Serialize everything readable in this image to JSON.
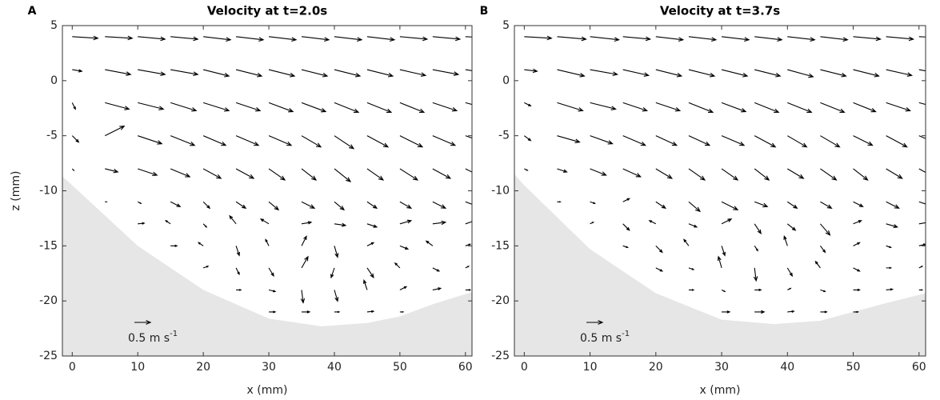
{
  "chart_data": [
    {
      "type": "quiver",
      "panel": "A",
      "title": "Velocity at t=2.0s",
      "xlabel": "x (mm)",
      "ylabel": "z (mm)",
      "xlim": [
        -1.5,
        61
      ],
      "ylim": [
        -25,
        5
      ],
      "xticks": [
        0,
        10,
        20,
        30,
        40,
        50,
        60
      ],
      "yticks": [
        -25,
        -20,
        -15,
        -10,
        -5,
        0,
        5
      ],
      "color": "#000000",
      "bed_color": "#e6e6e6",
      "bed_x": [
        -1.5,
        0,
        10,
        20,
        30,
        38,
        45,
        50,
        55,
        61
      ],
      "bed_z": [
        -8.7,
        -9.5,
        -15,
        -19,
        -21.6,
        -22.3,
        -22,
        -21.4,
        -20.3,
        -19.2
      ],
      "scale_value": 0.5,
      "scale_label": "0.5 m s",
      "scale_exponent": "-1",
      "x": [
        0,
        5,
        10,
        15,
        20,
        25,
        30,
        35,
        40,
        45,
        50,
        55,
        60
      ],
      "z": [
        4,
        1,
        -2,
        -5,
        -8,
        -11,
        -13,
        -15,
        -17,
        -19,
        -21
      ],
      "u": [
        [
          0.8,
          0.85,
          0.85,
          0.85,
          0.85,
          0.85,
          0.85,
          0.85,
          0.85,
          0.85,
          0.85,
          0.85,
          0.85
        ],
        [
          0.3,
          0.8,
          0.85,
          0.85,
          0.8,
          0.8,
          0.8,
          0.8,
          0.8,
          0.8,
          0.8,
          0.8,
          0.8
        ],
        [
          0.1,
          0.75,
          0.8,
          0.8,
          0.8,
          0.75,
          0.75,
          0.75,
          0.75,
          0.75,
          0.75,
          0.75,
          0.75
        ],
        [
          0.2,
          0.6,
          0.75,
          0.75,
          0.7,
          0.7,
          0.7,
          0.6,
          0.6,
          0.65,
          0.7,
          0.7,
          0.7
        ],
        [
          0.05,
          0.4,
          0.6,
          0.6,
          0.55,
          0.55,
          0.5,
          0.45,
          0.5,
          0.5,
          0.55,
          0.55,
          0.6
        ],
        [
          null,
          0.05,
          0.1,
          0.3,
          0.2,
          0.3,
          0.3,
          0.4,
          0.3,
          0.3,
          0.35,
          0.4,
          0.4
        ],
        [
          null,
          null,
          0.2,
          -0.15,
          0.1,
          -0.2,
          -0.25,
          0.3,
          0.35,
          0.3,
          0.35,
          0.4,
          0.3
        ],
        [
          null,
          null,
          null,
          0.2,
          -0.15,
          0.1,
          -0.1,
          0.15,
          0.1,
          0.2,
          0.25,
          -0.2,
          0.15
        ],
        [
          null,
          null,
          null,
          null,
          0.15,
          0.1,
          0.15,
          0.2,
          -0.1,
          0.2,
          -0.15,
          0.2,
          0.1
        ],
        [
          null,
          null,
          null,
          null,
          null,
          0.15,
          0.2,
          0.05,
          0.1,
          -0.1,
          0.2,
          0.25,
          0.15
        ],
        [
          null,
          null,
          null,
          null,
          null,
          null,
          0.2,
          0.25,
          0.15,
          0.2,
          0.1,
          null,
          null
        ]
      ],
      "w": [
        [
          -0.05,
          -0.05,
          -0.08,
          -0.08,
          -0.1,
          -0.1,
          -0.1,
          -0.1,
          -0.1,
          -0.1,
          -0.08,
          -0.08,
          -0.05
        ],
        [
          -0.05,
          -0.15,
          -0.15,
          -0.15,
          -0.2,
          -0.2,
          -0.2,
          -0.2,
          -0.2,
          -0.2,
          -0.18,
          -0.15,
          -0.12
        ],
        [
          -0.2,
          -0.2,
          -0.2,
          -0.25,
          -0.25,
          -0.25,
          -0.28,
          -0.28,
          -0.3,
          -0.3,
          -0.3,
          -0.25,
          -0.2
        ],
        [
          -0.2,
          0.3,
          -0.25,
          -0.3,
          -0.3,
          -0.3,
          -0.3,
          -0.35,
          -0.4,
          -0.35,
          -0.35,
          -0.3,
          -0.25
        ],
        [
          -0.05,
          -0.1,
          -0.2,
          -0.25,
          -0.3,
          -0.3,
          -0.35,
          -0.35,
          -0.4,
          -0.35,
          -0.35,
          -0.3,
          -0.3
        ],
        [
          null,
          0,
          -0.05,
          -0.15,
          -0.2,
          -0.2,
          -0.25,
          -0.2,
          -0.25,
          -0.2,
          -0.2,
          -0.2,
          -0.15
        ],
        [
          null,
          null,
          0.02,
          0.1,
          -0.1,
          0.25,
          0.15,
          0.05,
          -0.05,
          -0.1,
          0.1,
          0.05,
          0.1
        ],
        [
          null,
          null,
          null,
          0,
          0.1,
          -0.3,
          0.2,
          0.3,
          -0.35,
          0.1,
          -0.1,
          0.15,
          0.05
        ],
        [
          null,
          null,
          null,
          null,
          0.05,
          -0.2,
          -0.25,
          0.35,
          -0.3,
          -0.3,
          0.15,
          -0.1,
          0.05
        ],
        [
          null,
          null,
          null,
          null,
          null,
          0,
          -0.05,
          -0.4,
          -0.35,
          0.3,
          0.1,
          0.05,
          0
        ],
        [
          null,
          null,
          null,
          null,
          null,
          null,
          0,
          0,
          0,
          0.02,
          0,
          null,
          null
        ]
      ]
    },
    {
      "type": "quiver",
      "panel": "B",
      "title": "Velocity at t=3.7s",
      "xlabel": "x (mm)",
      "xlim": [
        -1.5,
        61
      ],
      "ylim": [
        -25,
        5
      ],
      "xticks": [
        0,
        10,
        20,
        30,
        40,
        50,
        60
      ],
      "yticks": [
        -25,
        -20,
        -15,
        -10,
        -5,
        0,
        5
      ],
      "color": "#000000",
      "bed_color": "#e6e6e6",
      "bed_x": [
        -1.5,
        0,
        10,
        20,
        30,
        38,
        45,
        50,
        55,
        61
      ],
      "bed_z": [
        -8.5,
        -9.5,
        -15.3,
        -19.3,
        -21.7,
        -22.1,
        -21.8,
        -21,
        -20.2,
        -19.3
      ],
      "scale_value": 0.5,
      "scale_label": "0.5 m s",
      "scale_exponent": "-1",
      "x": [
        0,
        5,
        10,
        15,
        20,
        25,
        30,
        35,
        40,
        45,
        50,
        55,
        60
      ],
      "z": [
        4,
        1,
        -2,
        -5,
        -8,
        -11,
        -13,
        -15,
        -17,
        -19,
        -21
      ],
      "u": [
        [
          0.85,
          0.9,
          0.9,
          0.85,
          0.85,
          0.85,
          0.85,
          0.85,
          0.85,
          0.85,
          0.85,
          0.85,
          0.85
        ],
        [
          0.4,
          0.85,
          0.85,
          0.8,
          0.8,
          0.8,
          0.8,
          0.8,
          0.8,
          0.8,
          0.8,
          0.8,
          0.8
        ],
        [
          0.2,
          0.8,
          0.8,
          0.75,
          0.75,
          0.75,
          0.75,
          0.75,
          0.75,
          0.75,
          0.7,
          0.75,
          0.75
        ],
        [
          0.2,
          0.7,
          0.7,
          0.7,
          0.65,
          0.65,
          0.7,
          0.65,
          0.6,
          0.6,
          0.6,
          0.65,
          0.7
        ],
        [
          0.1,
          0.3,
          0.5,
          0.55,
          0.5,
          0.5,
          0.5,
          0.45,
          0.5,
          0.5,
          0.45,
          0.5,
          0.55
        ],
        [
          null,
          0.1,
          0.15,
          0.2,
          0.3,
          0.35,
          0.5,
          0.4,
          0.3,
          0.35,
          0.3,
          0.4,
          0.45
        ],
        [
          null,
          null,
          0.1,
          0.2,
          -0.2,
          0.25,
          0.3,
          0.2,
          0.25,
          0.3,
          0.25,
          0.35,
          0.3
        ],
        [
          null,
          null,
          null,
          0.15,
          0.2,
          -0.15,
          0.1,
          0.1,
          -0.1,
          0.15,
          0.2,
          0.15,
          0.2
        ],
        [
          null,
          null,
          null,
          null,
          0.2,
          0.15,
          -0.1,
          0.05,
          0.15,
          -0.15,
          0.2,
          0.15,
          0.1
        ],
        [
          null,
          null,
          null,
          null,
          null,
          0.15,
          0.1,
          0.2,
          0.1,
          0.15,
          0.2,
          0.2,
          0.1
        ],
        [
          null,
          null,
          null,
          null,
          null,
          null,
          0.25,
          0.3,
          0.2,
          0.2,
          0.15,
          null,
          null
        ]
      ],
      "w": [
        [
          -0.05,
          -0.08,
          -0.1,
          -0.08,
          -0.1,
          -0.1,
          -0.1,
          -0.1,
          -0.1,
          -0.1,
          -0.08,
          -0.08,
          -0.05
        ],
        [
          -0.05,
          -0.2,
          -0.15,
          -0.18,
          -0.2,
          -0.2,
          -0.2,
          -0.2,
          -0.22,
          -0.2,
          -0.2,
          -0.18,
          -0.15
        ],
        [
          -0.1,
          -0.25,
          -0.2,
          -0.25,
          -0.25,
          -0.3,
          -0.28,
          -0.3,
          -0.3,
          -0.3,
          -0.28,
          -0.25,
          -0.2
        ],
        [
          -0.15,
          -0.2,
          -0.25,
          -0.3,
          -0.3,
          -0.3,
          -0.3,
          -0.35,
          -0.35,
          -0.35,
          -0.3,
          -0.35,
          -0.3
        ],
        [
          -0.05,
          -0.1,
          -0.2,
          -0.25,
          -0.3,
          -0.35,
          -0.35,
          -0.35,
          -0.3,
          -0.35,
          -0.35,
          -0.3,
          -0.3
        ],
        [
          null,
          0,
          -0.05,
          0.1,
          -0.2,
          -0.3,
          -0.25,
          -0.15,
          -0.2,
          -0.2,
          -0.15,
          -0.2,
          -0.15
        ],
        [
          null,
          null,
          0.05,
          -0.2,
          0.1,
          -0.1,
          0.15,
          -0.3,
          -0.2,
          -0.35,
          0.1,
          -0.1,
          0.05
        ],
        [
          null,
          null,
          null,
          -0.05,
          -0.2,
          0.2,
          -0.3,
          -0.15,
          0.3,
          -0.2,
          0.1,
          -0.05,
          0.05
        ],
        [
          null,
          null,
          null,
          null,
          -0.1,
          -0.05,
          0.35,
          -0.4,
          -0.25,
          0.2,
          -0.1,
          0,
          0.05
        ],
        [
          null,
          null,
          null,
          null,
          null,
          0,
          -0.05,
          0,
          0.05,
          -0.05,
          0,
          0.02,
          0
        ],
        [
          null,
          null,
          null,
          null,
          null,
          null,
          0,
          0,
          0.02,
          0,
          0,
          null,
          null
        ]
      ]
    }
  ]
}
